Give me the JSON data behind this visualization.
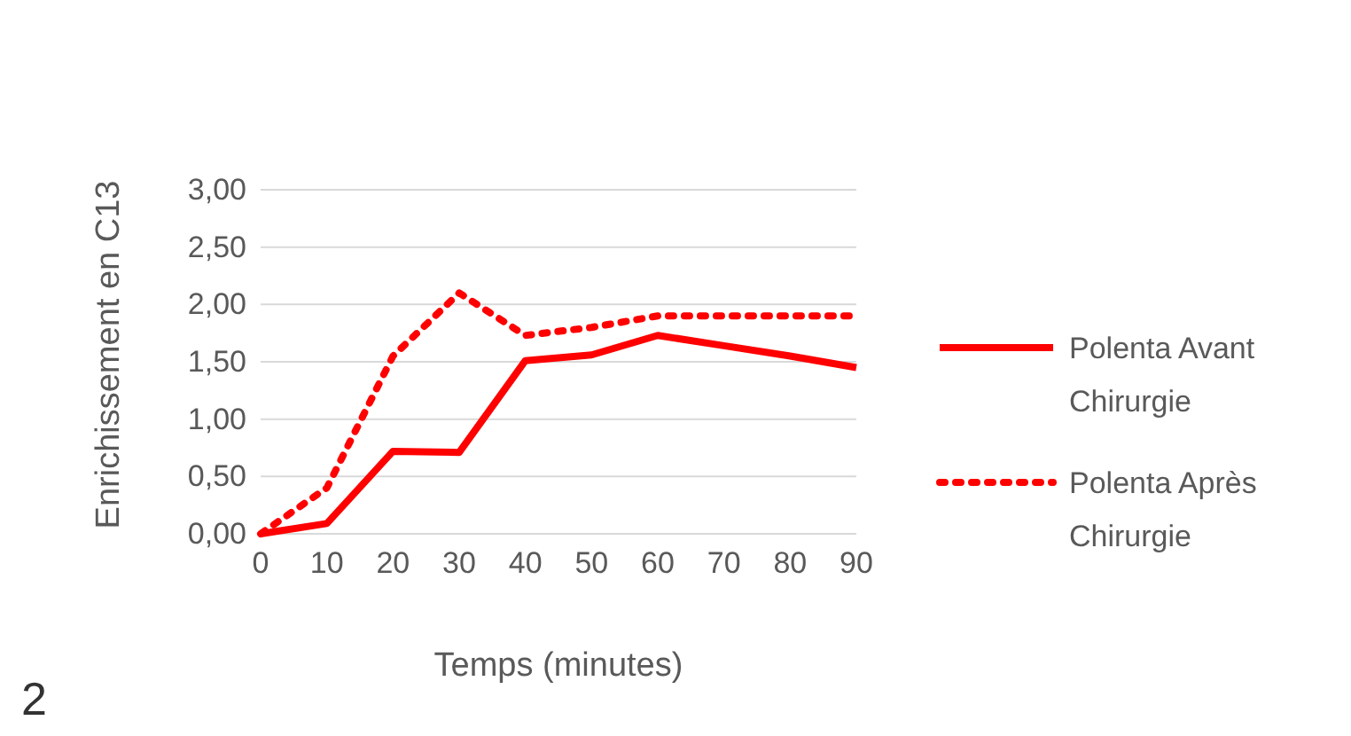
{
  "chart_data": {
    "type": "line",
    "xlabel": "Temps (minutes)",
    "ylabel": "Enrichissement en C13",
    "x": [
      0,
      10,
      20,
      30,
      40,
      50,
      60,
      70,
      80,
      90
    ],
    "series": [
      {
        "name": "Polenta Avant Chirurgie",
        "color": "#ff0000",
        "line_style": "solid",
        "values": [
          0,
          0.09,
          0.72,
          0.71,
          1.51,
          1.56,
          1.73,
          1.64,
          1.55,
          1.45
        ]
      },
      {
        "name": "Polenta Après Chirurgie",
        "color": "#ff0000",
        "line_style": "dotted",
        "values": [
          0,
          0.4,
          1.55,
          2.1,
          1.73,
          1.8,
          1.9,
          1.9,
          1.9,
          1.9
        ]
      }
    ],
    "xlim": [
      0,
      90
    ],
    "xticks": [
      0,
      10,
      20,
      30,
      40,
      50,
      60,
      70,
      80,
      90
    ],
    "ylim": [
      0,
      3
    ],
    "yticks": [
      {
        "value": 0,
        "label": "0,00"
      },
      {
        "value": 0.5,
        "label": "0,50"
      },
      {
        "value": 1,
        "label": "1,00"
      },
      {
        "value": 1.5,
        "label": "1,50"
      },
      {
        "value": 2,
        "label": "2,00"
      },
      {
        "value": 2.5,
        "label": "2,50"
      },
      {
        "value": 3,
        "label": "3,00"
      }
    ],
    "grid": "y",
    "legend": "right",
    "marker": "none",
    "annotations": [
      "2"
    ]
  }
}
